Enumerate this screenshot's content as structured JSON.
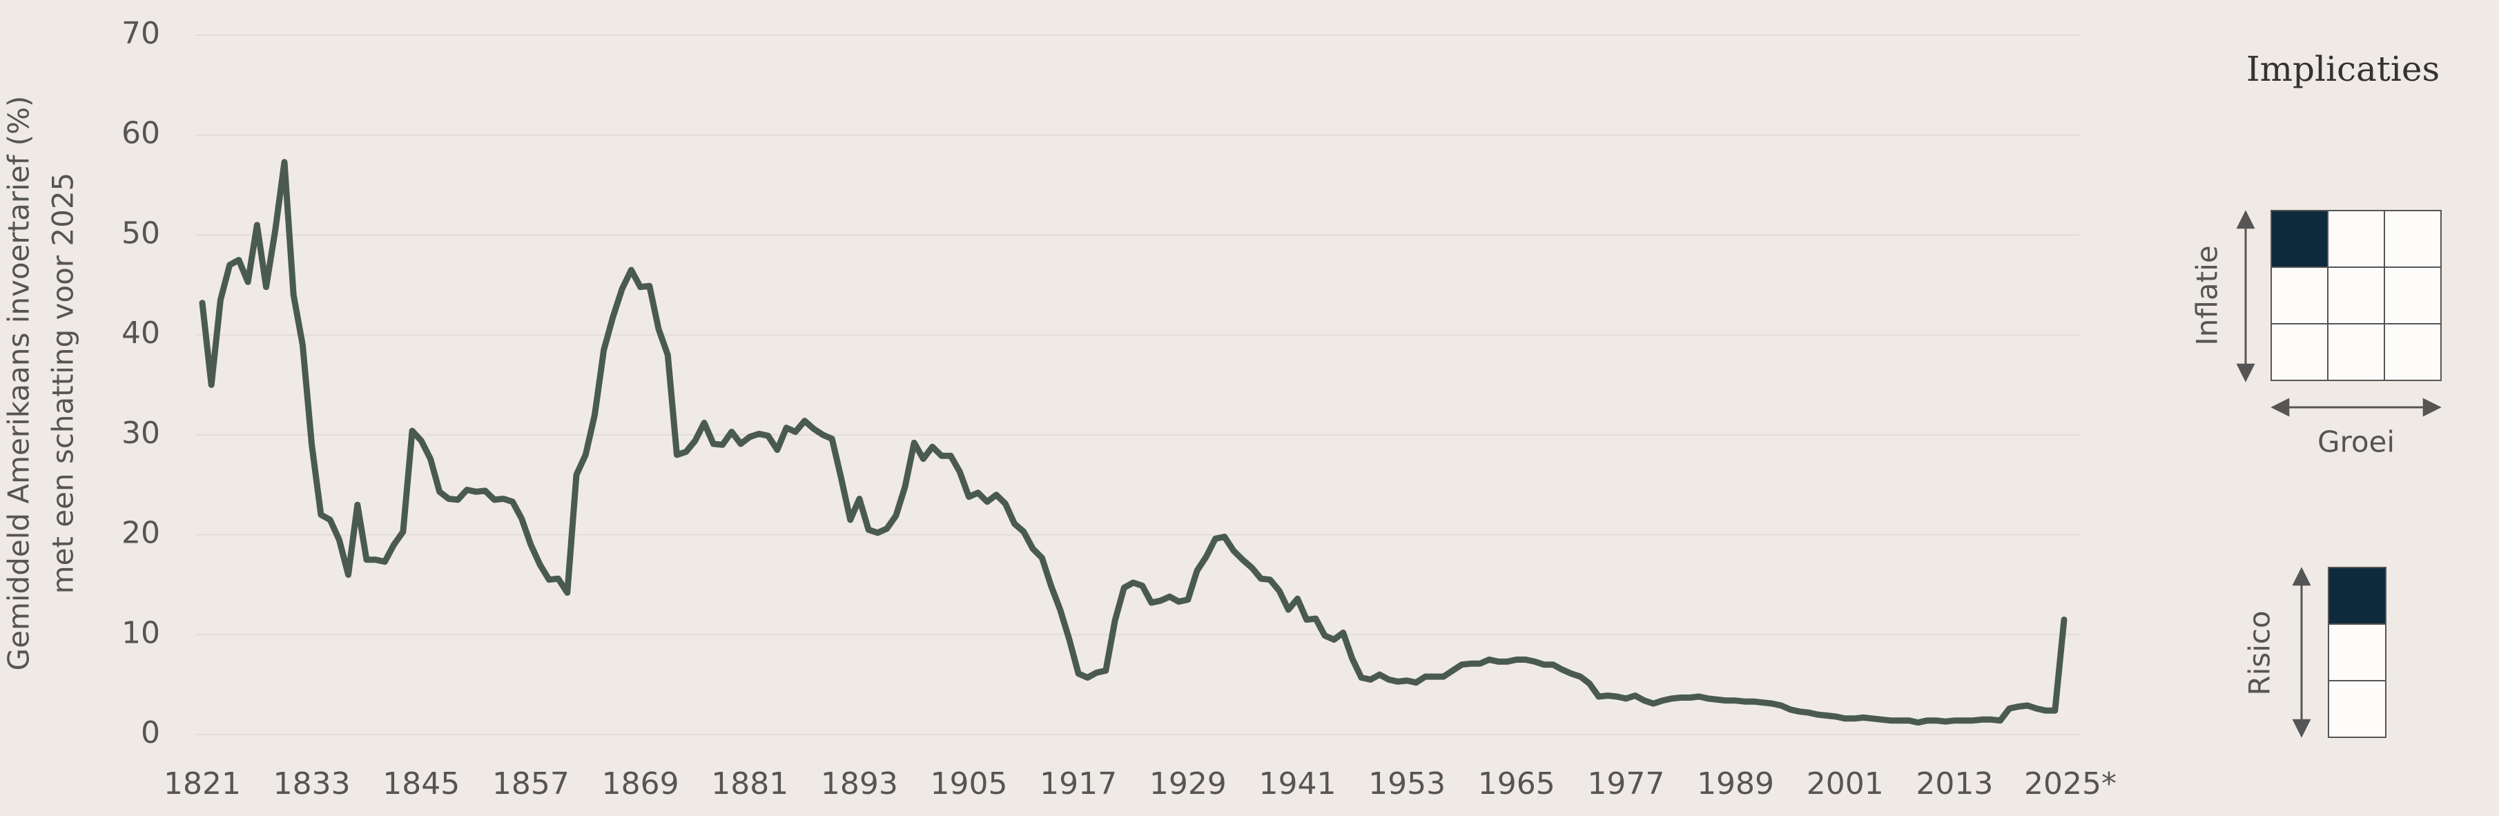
{
  "chart_data": {
    "type": "line",
    "ylabel": [
      "Gemiddeld Amerikaans invoertarief (%)",
      "met een schatting voor 2025"
    ],
    "x": [
      1821,
      1822,
      1823,
      1824,
      1825,
      1826,
      1827,
      1828,
      1829,
      1830,
      1831,
      1832,
      1833,
      1834,
      1835,
      1836,
      1837,
      1838,
      1839,
      1840,
      1841,
      1842,
      1843,
      1844,
      1845,
      1846,
      1847,
      1848,
      1849,
      1850,
      1851,
      1852,
      1853,
      1854,
      1855,
      1856,
      1857,
      1858,
      1859,
      1860,
      1861,
      1862,
      1863,
      1864,
      1865,
      1866,
      1867,
      1868,
      1869,
      1870,
      1871,
      1872,
      1873,
      1874,
      1875,
      1876,
      1877,
      1878,
      1879,
      1880,
      1881,
      1882,
      1883,
      1884,
      1885,
      1886,
      1887,
      1888,
      1889,
      1890,
      1891,
      1892,
      1893,
      1894,
      1895,
      1896,
      1897,
      1898,
      1899,
      1900,
      1901,
      1902,
      1903,
      1904,
      1905,
      1906,
      1907,
      1908,
      1909,
      1910,
      1911,
      1912,
      1913,
      1914,
      1915,
      1916,
      1917,
      1918,
      1919,
      1920,
      1921,
      1922,
      1923,
      1924,
      1925,
      1926,
      1927,
      1928,
      1929,
      1930,
      1931,
      1932,
      1933,
      1934,
      1935,
      1936,
      1937,
      1938,
      1939,
      1940,
      1941,
      1942,
      1943,
      1944,
      1945,
      1946,
      1947,
      1948,
      1949,
      1950,
      1951,
      1952,
      1953,
      1954,
      1955,
      1956,
      1957,
      1958,
      1959,
      1960,
      1961,
      1962,
      1963,
      1964,
      1965,
      1966,
      1967,
      1968,
      1969,
      1970,
      1971,
      1972,
      1973,
      1974,
      1975,
      1976,
      1977,
      1978,
      1979,
      1980,
      1981,
      1982,
      1983,
      1984,
      1985,
      1986,
      1987,
      1988,
      1989,
      1990,
      1991,
      1992,
      1993,
      1994,
      1995,
      1996,
      1997,
      1998,
      1999,
      2000,
      2001,
      2002,
      2003,
      2004,
      2005,
      2006,
      2007,
      2008,
      2009,
      2010,
      2011,
      2012,
      2013,
      2014,
      2015,
      2016,
      2017,
      2018,
      2019,
      2020,
      2021,
      2022,
      2023,
      2024,
      2025
    ],
    "series": [
      {
        "color": "#4a5a50",
        "values": [
          43.2,
          35,
          43.5,
          47,
          47.5,
          45.3,
          51,
          44.8,
          50.5,
          57.3,
          44,
          39,
          29,
          22,
          21.5,
          19.5,
          16,
          23,
          17.5,
          17.5,
          17.3,
          19,
          20.3,
          30.4,
          29.4,
          27.6,
          24.3,
          23.6,
          23.5,
          24.5,
          24.3,
          24.4,
          23.5,
          23.6,
          23.3,
          21.6,
          19,
          17,
          15.5,
          15.6,
          14.2,
          26,
          28,
          32,
          38.5,
          41.8,
          44.6,
          46.5,
          44.8,
          44.9,
          40.6,
          38,
          28,
          28.3,
          29.4,
          31.2,
          29.1,
          29,
          30.3,
          29.1,
          29.8,
          30.1,
          29.9,
          28.5,
          30.7,
          30.3,
          31.4,
          30.6,
          30,
          29.6,
          25.7,
          21.5,
          23.6,
          20.5,
          20.2,
          20.6,
          21.9,
          24.8,
          29.2,
          27.6,
          28.8,
          27.9,
          27.9,
          26.3,
          23.8,
          24.2,
          23.3,
          24,
          23.1,
          21.1,
          20.3,
          18.6,
          17.7,
          14.9,
          12.5,
          9.5,
          6.1,
          5.7,
          6.2,
          6.4,
          11.4,
          14.7,
          15.2,
          14.9,
          13.2,
          13.4,
          13.8,
          13.3,
          13.5,
          16.4,
          17.8,
          19.6,
          19.8,
          18.4,
          17.5,
          16.7,
          15.6,
          15.5,
          14.4,
          12.5,
          13.6,
          11.5,
          11.6,
          9.9,
          9.5,
          10.2,
          7.6,
          5.7,
          5.5,
          6,
          5.5,
          5.3,
          5.4,
          5.2,
          5.8,
          5.8,
          5.8,
          6.4,
          7,
          7.1,
          7.1,
          7.5,
          7.3,
          7.3,
          7.5,
          7.5,
          7.3,
          7,
          7,
          6.5,
          6.1,
          5.8,
          5.1,
          3.8,
          3.9,
          3.8,
          3.6,
          3.9,
          3.4,
          3.1,
          3.4,
          3.6,
          3.7,
          3.7,
          3.8,
          3.6,
          3.5,
          3.4,
          3.4,
          3.3,
          3.3,
          3.2,
          3.1,
          2.9,
          2.5,
          2.3,
          2.2,
          2,
          1.9,
          1.8,
          1.6,
          1.6,
          1.7,
          1.6,
          1.5,
          1.4,
          1.4,
          1.4,
          1.2,
          1.4,
          1.4,
          1.3,
          1.4,
          1.4,
          1.4,
          1.5,
          1.5,
          1.4,
          2.6,
          2.8,
          2.9,
          2.6,
          2.4,
          2.4,
          11.5
        ]
      }
    ],
    "xlim": [
      1821,
      2025
    ],
    "xticks": [
      1821,
      1833,
      1845,
      1857,
      1869,
      1881,
      1893,
      1905,
      1917,
      1929,
      1941,
      1953,
      1965,
      1977,
      1989,
      2001,
      2013,
      {
        "value": 2025,
        "label": "2025*"
      }
    ],
    "ylim": [
      0,
      70
    ],
    "yticks": [
      0,
      10,
      20,
      30,
      40,
      50,
      60,
      70
    ],
    "grid": true
  },
  "implications": {
    "title": "Implicaties",
    "inflation_label": "Inflatie",
    "growth_label": "Groei",
    "risk_label": "Risico"
  }
}
